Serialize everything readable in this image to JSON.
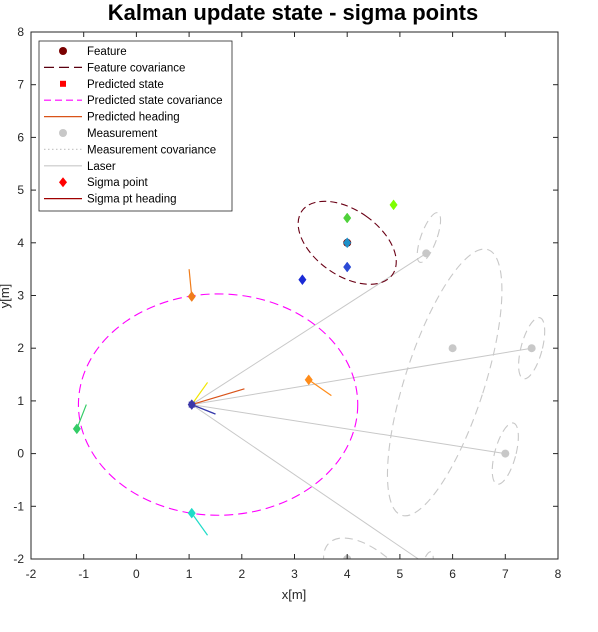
{
  "chart_data": {
    "type": "scatter",
    "title": "Kalman update state - sigma points",
    "xlabel": "x[m]",
    "ylabel": "y[m]",
    "xlim": [
      -2,
      8
    ],
    "ylim": [
      -2,
      8
    ],
    "xticks": [
      -2,
      -1,
      0,
      1,
      2,
      3,
      4,
      5,
      6,
      7,
      8
    ],
    "yticks": [
      -2,
      -1,
      0,
      1,
      2,
      3,
      4,
      5,
      6,
      7,
      8
    ],
    "grid": false,
    "legend_position": "top-left",
    "legend": [
      {
        "label": "Feature",
        "marker": "circle",
        "color": "#7a0000"
      },
      {
        "label": "Feature covariance",
        "line": "dashed",
        "color": "#5a0010"
      },
      {
        "label": "Predicted state",
        "marker": "square",
        "color": "#ff0000"
      },
      {
        "label": "Predicted state covariance",
        "line": "dashed",
        "color": "#ff00ff"
      },
      {
        "label": "Predicted heading",
        "line": "solid",
        "color": "#d95319"
      },
      {
        "label": "Measurement",
        "marker": "circle",
        "color": "#c8c8c8"
      },
      {
        "label": "Measurement covariance",
        "line": "dotted",
        "color": "#c8c8c8"
      },
      {
        "label": "Laser",
        "line": "solid",
        "color": "#c8c8c8"
      },
      {
        "label": "Sigma point",
        "marker": "diamond",
        "color": "#ff0000"
      },
      {
        "label": "Sigma pt heading",
        "line": "solid",
        "color": "#a00000"
      }
    ],
    "feature": {
      "x": 4.0,
      "y": 4.0
    },
    "feature_covariance": {
      "cx": 4.0,
      "cy": 4.0,
      "rx": 0.62,
      "ry": 1.05,
      "angle_deg": 55
    },
    "predicted_state": {
      "x": 1.05,
      "y": 0.93
    },
    "predicted_state_covariance": {
      "cx": 1.55,
      "cy": 0.93,
      "rx": 2.65,
      "ry": 2.1,
      "angle_deg": 0
    },
    "sensor_origin": {
      "x": 1.05,
      "y": 0.93
    },
    "measurements": [
      {
        "x": 5.5,
        "y": 3.8
      },
      {
        "x": 6.0,
        "y": 2.0
      },
      {
        "x": 7.5,
        "y": 2.0
      },
      {
        "x": 7.0,
        "y": 0.0
      },
      {
        "x": 4.0,
        "y": -2.0
      }
    ],
    "laser_endpoints": [
      {
        "x": 5.5,
        "y": 3.8
      },
      {
        "x": 7.5,
        "y": 2.0
      },
      {
        "x": 7.0,
        "y": 0.0
      },
      {
        "x": 5.35,
        "y": -2.0
      }
    ],
    "measurement_covariances": [
      {
        "cx": 5.55,
        "cy": 4.1,
        "rx": 0.15,
        "ry": 0.5,
        "angle_deg": -20
      },
      {
        "cx": 5.85,
        "cy": 1.35,
        "rx": 0.75,
        "ry": 2.65,
        "angle_deg": -18
      },
      {
        "cx": 7.5,
        "cy": 2.0,
        "rx": 0.2,
        "ry": 0.6,
        "angle_deg": -15
      },
      {
        "cx": 7.0,
        "cy": 0.0,
        "rx": 0.2,
        "ry": 0.6,
        "angle_deg": -15
      },
      {
        "cx": 4.5,
        "cy": -2.55,
        "rx": 0.6,
        "ry": 1.2,
        "angle_deg": 45
      },
      {
        "cx": 5.5,
        "cy": -2.2,
        "rx": 0.1,
        "ry": 0.35,
        "angle_deg": -15
      }
    ],
    "feature_sigma_points": [
      {
        "x": 4.0,
        "y": 4.0,
        "color": "#1e90c8"
      },
      {
        "x": 4.0,
        "y": 4.47,
        "color": "#4fd13a"
      },
      {
        "x": 4.88,
        "y": 4.72,
        "color": "#7fff00"
      },
      {
        "x": 4.0,
        "y": 3.54,
        "color": "#2c4bd6"
      },
      {
        "x": 3.15,
        "y": 3.3,
        "color": "#1a2ad6"
      }
    ],
    "state_sigma_points": [
      {
        "x": 1.05,
        "y": 0.93,
        "color": "#3b37a8",
        "heading": {
          "x2": 1.5,
          "y2": 0.75
        }
      },
      {
        "x": 1.05,
        "y": 2.98,
        "color": "#f07c1a",
        "heading": {
          "x2": 1.0,
          "y2": 3.5
        }
      },
      {
        "x": 3.27,
        "y": 1.4,
        "color": "#ff8c1a",
        "heading": {
          "x2": 3.7,
          "y2": 1.1
        }
      },
      {
        "x": -1.13,
        "y": 0.47,
        "color": "#33cc66",
        "heading": {
          "x2": -0.95,
          "y2": 0.93
        }
      },
      {
        "x": 1.05,
        "y": -1.13,
        "color": "#20dcc8",
        "heading": {
          "x2": 1.35,
          "y2": -1.55
        }
      }
    ],
    "predicted_headings": [
      {
        "x2": 2.05,
        "y2": 1.23,
        "color": "#d95319"
      },
      {
        "x2": 1.35,
        "y2": 1.35,
        "color": "#f2e600"
      },
      {
        "x2": 1.5,
        "y2": 0.75,
        "color": "#2a6fd6"
      }
    ]
  }
}
